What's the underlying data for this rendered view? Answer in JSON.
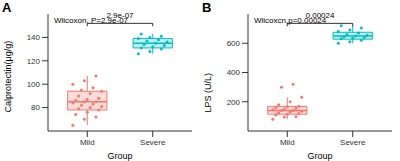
{
  "chart_data": [
    {
      "type": "box",
      "title": "A",
      "x_label": "Group",
      "y_label": "Calprotectin(μg/g)",
      "annotation": "Wilcoxon, P=2.9e-07",
      "bracket_label": "2.9e-07",
      "categories": [
        "Mild",
        "Severe"
      ],
      "ylim": [
        60,
        160
      ],
      "yticks": [
        80,
        100,
        120,
        140
      ],
      "series": [
        {
          "name": "Mild",
          "color": "#F8766D",
          "whisker_low": 65,
          "q1": 78,
          "median": 85,
          "q3": 94,
          "whisker_high": 107,
          "points": [
            65,
            70,
            72,
            74,
            76,
            78,
            79,
            80,
            81,
            82,
            83,
            84,
            85,
            85,
            86,
            87,
            88,
            90,
            92,
            94,
            95,
            97,
            100,
            103,
            107
          ]
        },
        {
          "name": "Severe",
          "color": "#00BFC4",
          "whisker_low": 126,
          "q1": 131,
          "median": 135,
          "q3": 139,
          "whisker_high": 143,
          "points": [
            126,
            128,
            130,
            131,
            132,
            133,
            134,
            135,
            136,
            137,
            138,
            139,
            140,
            141,
            143
          ]
        }
      ]
    },
    {
      "type": "box",
      "title": "B",
      "x_label": "Group",
      "y_label": "LPS (U/L)",
      "annotation": "Wilcoxcn,p=0.00024",
      "bracket_label": "0.00024",
      "categories": [
        "Mild",
        "Severe"
      ],
      "ylim": [
        0,
        800
      ],
      "yticks": [
        200,
        400,
        600
      ],
      "series": [
        {
          "name": "Mild",
          "color": "#F8766D",
          "whisker_low": 80,
          "q1": 115,
          "median": 140,
          "q3": 168,
          "whisker_high": 230,
          "points": [
            80,
            95,
            100,
            110,
            115,
            120,
            125,
            130,
            135,
            140,
            140,
            145,
            150,
            155,
            160,
            165,
            170,
            180,
            200,
            230,
            300,
            320
          ]
        },
        {
          "name": "Severe",
          "color": "#00BFC4",
          "whisker_low": 600,
          "q1": 628,
          "median": 650,
          "q3": 675,
          "whisker_high": 720,
          "points": [
            600,
            610,
            620,
            630,
            635,
            640,
            645,
            650,
            655,
            660,
            670,
            680,
            690,
            705,
            720
          ]
        }
      ]
    }
  ]
}
